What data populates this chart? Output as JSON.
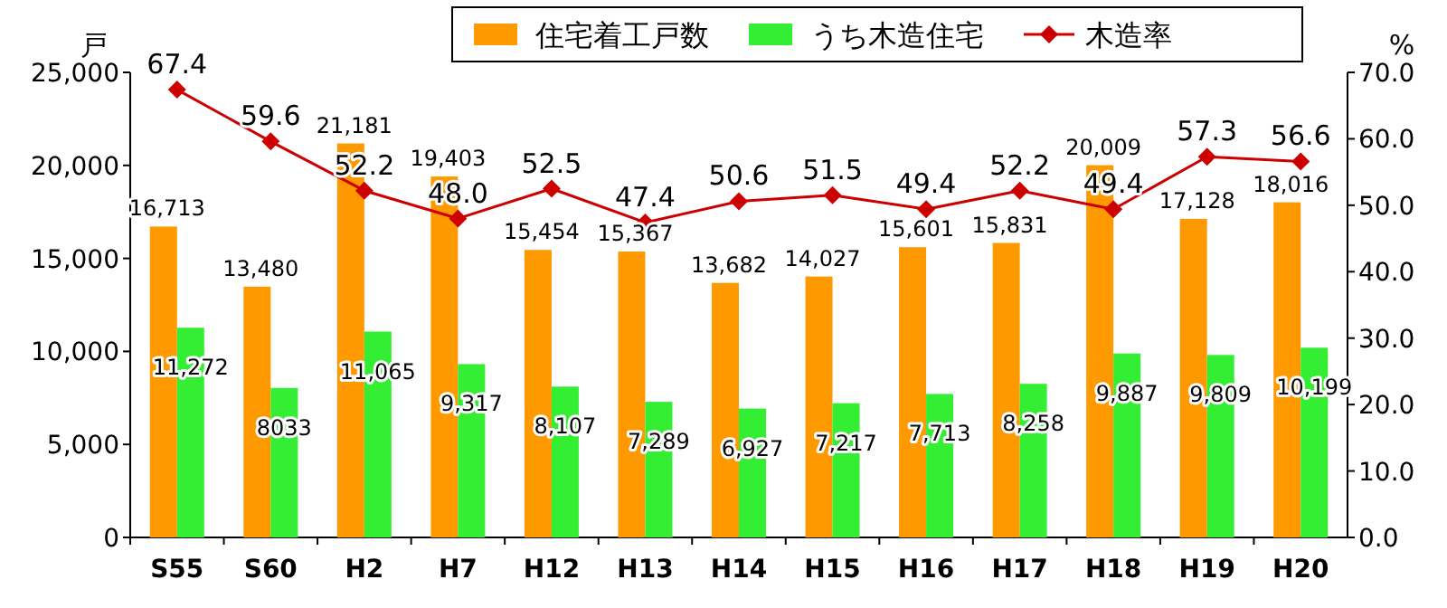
{
  "chart_data": {
    "type": "bar",
    "ylabel": "戸",
    "y2label": "%",
    "legend": "top right",
    "categories": [
      "S55",
      "S60",
      "H2",
      "H7",
      "H12",
      "H13",
      "H14",
      "H15",
      "H16",
      "H17",
      "H18",
      "H19",
      "H20"
    ],
    "series": [
      {
        "name": "住宅着工戸数",
        "color": "#ff9900",
        "values": [
          16713,
          13480,
          21181,
          19403,
          15454,
          15367,
          13682,
          14027,
          15601,
          15831,
          20009,
          17128,
          18016
        ],
        "value_labels": [
          "16,713",
          "13,480",
          "21,181",
          "19,403",
          "15,454",
          "15,367",
          "13,682",
          "14,027",
          "15,601",
          "15,831",
          "20,009",
          "17,128",
          "18,016"
        ]
      },
      {
        "name": "うち木造住宅",
        "color": "#33ee33",
        "values": [
          11272,
          8033,
          11065,
          9317,
          8107,
          7289,
          6927,
          7217,
          7713,
          8258,
          9887,
          9809,
          10199
        ],
        "value_labels": [
          "11,272",
          "8033",
          "11,065",
          "9,317",
          "8,107",
          "7,289",
          "6,927",
          "7,217",
          "7,713",
          "8,258",
          "9,887",
          "9,809",
          "10,199"
        ]
      },
      {
        "name": "木造率",
        "type": "line",
        "axis": "y2",
        "marker": "diamond",
        "color": "#cc0000",
        "values": [
          67.4,
          59.6,
          52.2,
          48.0,
          52.5,
          47.4,
          50.6,
          51.5,
          49.4,
          52.2,
          49.4,
          57.3,
          56.6
        ],
        "value_labels": [
          "67.4",
          "59.6",
          "52.2",
          "48.0",
          "52.5",
          "47.4",
          "50.6",
          "51.5",
          "49.4",
          "52.2",
          "49.4",
          "57.3",
          "56.6"
        ]
      }
    ],
    "ylim": [
      0,
      25000
    ],
    "yticks": [
      {
        "value": 0,
        "label": "0"
      },
      {
        "value": 5000,
        "label": "5,000"
      },
      {
        "value": 10000,
        "label": "10,000"
      },
      {
        "value": 15000,
        "label": "15,000"
      },
      {
        "value": 20000,
        "label": "20,000"
      },
      {
        "value": 25000,
        "label": "25,000"
      }
    ],
    "y2lim": [
      0,
      70
    ],
    "y2ticks": [
      {
        "value": 0,
        "label": "0.0"
      },
      {
        "value": 10,
        "label": "10.0"
      },
      {
        "value": 20,
        "label": "20.0"
      },
      {
        "value": 30,
        "label": "30.0"
      },
      {
        "value": 40,
        "label": "40.0"
      },
      {
        "value": 50,
        "label": "50.0"
      },
      {
        "value": 60,
        "label": "60.0"
      },
      {
        "value": 70,
        "label": "70.0"
      }
    ]
  }
}
